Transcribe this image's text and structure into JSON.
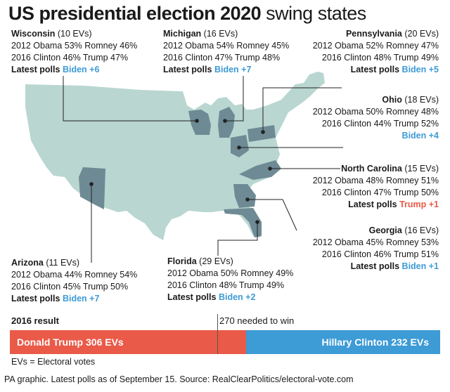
{
  "title": {
    "bold": "US presidential election 2020",
    "light": "swing states"
  },
  "colors": {
    "map_base": "#b9d6d0",
    "swing_state": "#6e8a95",
    "blue": "#3d9bd6",
    "red": "#ea5a48",
    "leader": "#222222"
  },
  "states": [
    {
      "id": "wisconsin",
      "name": "Wisconsin",
      "evs": "(10 EVs)",
      "line2012": "2012 Obama 53% Romney 46%",
      "line2016": "2016 Clinton 46% Trump 47%",
      "polls_label": "Latest polls",
      "polls_value": "Biden +6",
      "leader": "Biden"
    },
    {
      "id": "michigan",
      "name": "Michigan",
      "evs": "(16 EVs)",
      "line2012": "2012 Obama 54% Romney 45%",
      "line2016": "2016 Clinton 47% Trump 48%",
      "polls_label": "Latest polls",
      "polls_value": "Biden +7",
      "leader": "Biden"
    },
    {
      "id": "pennsylvania",
      "name": "Pennsylvania",
      "evs": "(20 EVs)",
      "line2012": "2012 Obama 52% Romney 47%",
      "line2016": "2016 Clinton 48% Trump 49%",
      "polls_label": "Latest polls",
      "polls_value": "Biden +5",
      "leader": "Biden"
    },
    {
      "id": "ohio",
      "name": "Ohio",
      "evs": "(18 EVs)",
      "line2012": "2012 Obama 50% Romney 48%",
      "line2016": "2016 Clinton 44% Trump 52%",
      "polls_label": "",
      "polls_value": "Biden +4",
      "leader": "Biden"
    },
    {
      "id": "north_carolina",
      "name": "North Carolina",
      "evs": "(15 EVs)",
      "line2012": "2012 Obama 48% Romney 51%",
      "line2016": "2016 Clinton 47% Trump 50%",
      "polls_label": "Latest polls",
      "polls_value": "Trump +1",
      "leader": "Trump"
    },
    {
      "id": "georgia",
      "name": "Georgia",
      "evs": "(16 EVs)",
      "line2012": "2012 Obama 45% Romney 53%",
      "line2016": "2016 Clinton 46% Trump 51%",
      "polls_label": "Latest polls",
      "polls_value": "Biden +1",
      "leader": "Biden"
    },
    {
      "id": "florida",
      "name": "Florida",
      "evs": "(29 EVs)",
      "line2012": "2012 Obama 50% Romney 49%",
      "line2016": "2016 Clinton 48% Trump 49%",
      "polls_label": "Latest polls",
      "polls_value": "Biden +2",
      "leader": "Biden"
    },
    {
      "id": "arizona",
      "name": "Arizona",
      "evs": "(11 EVs)",
      "line2012": "2012 Obama 44% Romney 54%",
      "line2016": "2016 Clinton 45% Trump 50%",
      "polls_label": "Latest polls",
      "polls_value": "Biden +7",
      "leader": "Biden"
    }
  ],
  "result": {
    "label": "2016 result",
    "needed": "270 needed to win",
    "needed_value": 270,
    "total_evs": 538,
    "trump": {
      "text": "Donald Trump 306 EVs",
      "evs": 306
    },
    "clinton": {
      "text": "Hillary Clinton 232 EVs",
      "evs": 232
    }
  },
  "ev_note": "EVs = Electoral votes",
  "source": "PA graphic. Latest polls as of September 15. Source: RealClearPolitics/electoral-vote.com"
}
